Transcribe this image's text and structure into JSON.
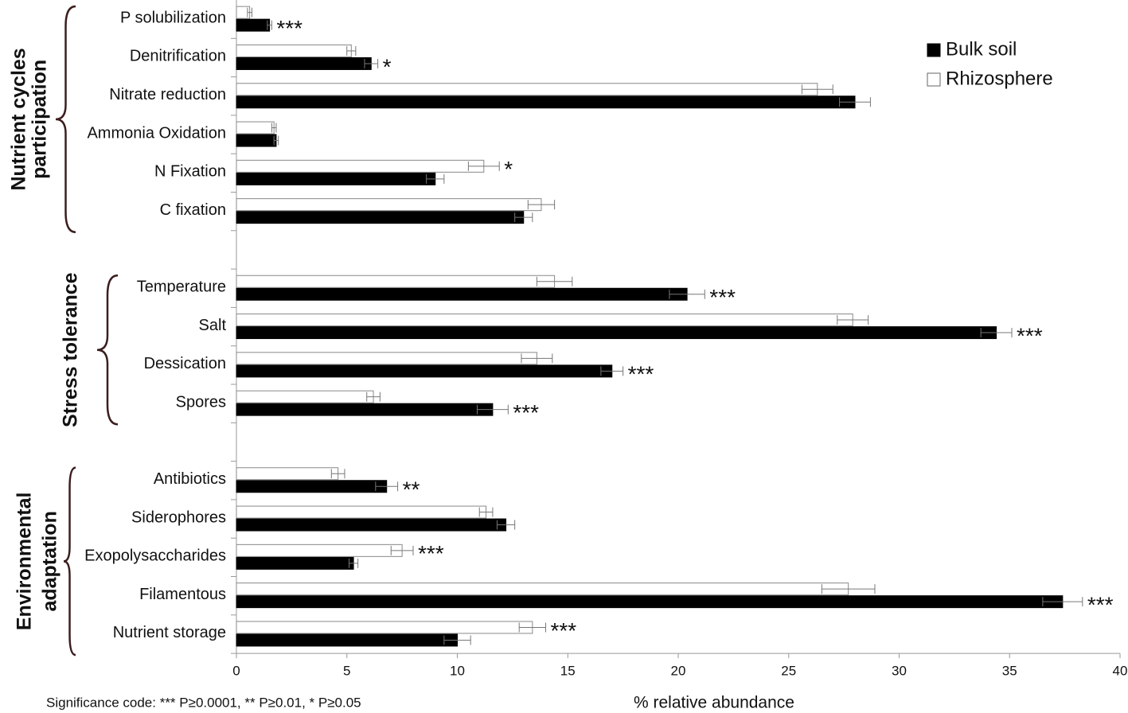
{
  "chart_data": {
    "type": "bar",
    "orientation": "horizontal",
    "categories": [
      "P solubilization",
      "Denitrification",
      "Nitrate reduction",
      "Ammonia Oxidation",
      "N Fixation",
      "C fixation",
      null,
      "Temperature",
      "Salt",
      "Dessication",
      "Spores",
      null,
      "Antibiotics",
      "Siderophores",
      "Exopolysaccharides",
      "Filamentous",
      "Nutrient storage"
    ],
    "groups": [
      {
        "label": [
          "Nutrient cycles",
          "participation"
        ]
      },
      {
        "label": [
          "Stress tolerance"
        ]
      },
      {
        "label": [
          "Environmental",
          "adaptation"
        ]
      }
    ],
    "series": [
      {
        "name": "Bulk soil",
        "color": "#000000",
        "values": [
          1.5,
          6.1,
          28.0,
          1.8,
          9.0,
          13.0,
          null,
          20.4,
          34.4,
          17.0,
          11.6,
          null,
          6.8,
          12.2,
          5.3,
          37.4,
          10.0
        ],
        "errors": [
          0.1,
          0.3,
          0.7,
          0.1,
          0.4,
          0.4,
          null,
          0.8,
          0.7,
          0.5,
          0.7,
          null,
          0.5,
          0.4,
          0.2,
          0.9,
          0.6
        ],
        "annotations": [
          "***",
          "*",
          null,
          null,
          null,
          null,
          null,
          "***",
          "***",
          "***",
          "***",
          null,
          "**",
          null,
          null,
          "***",
          null
        ]
      },
      {
        "name": "Rhizosphere",
        "color": "#ffffff",
        "values": [
          0.6,
          5.2,
          26.3,
          1.7,
          11.2,
          13.8,
          null,
          14.4,
          27.9,
          13.6,
          6.2,
          null,
          4.6,
          11.3,
          7.5,
          27.7,
          13.4
        ],
        "errors": [
          0.1,
          0.2,
          0.7,
          0.1,
          0.7,
          0.6,
          null,
          0.8,
          0.7,
          0.7,
          0.3,
          null,
          0.3,
          0.3,
          0.5,
          1.2,
          0.6
        ],
        "annotations": [
          null,
          null,
          null,
          null,
          "*",
          null,
          null,
          null,
          null,
          null,
          null,
          null,
          null,
          null,
          "***",
          null,
          "***"
        ]
      }
    ],
    "xlabel": "% relative abundance",
    "xlim": [
      0,
      40
    ],
    "xticks": [
      0,
      5,
      10,
      15,
      20,
      25,
      30,
      35,
      40
    ],
    "legend": "upper right",
    "note": "Significance code: *** P≥0.0001, ** P≥0.01, * P≥0.05"
  }
}
